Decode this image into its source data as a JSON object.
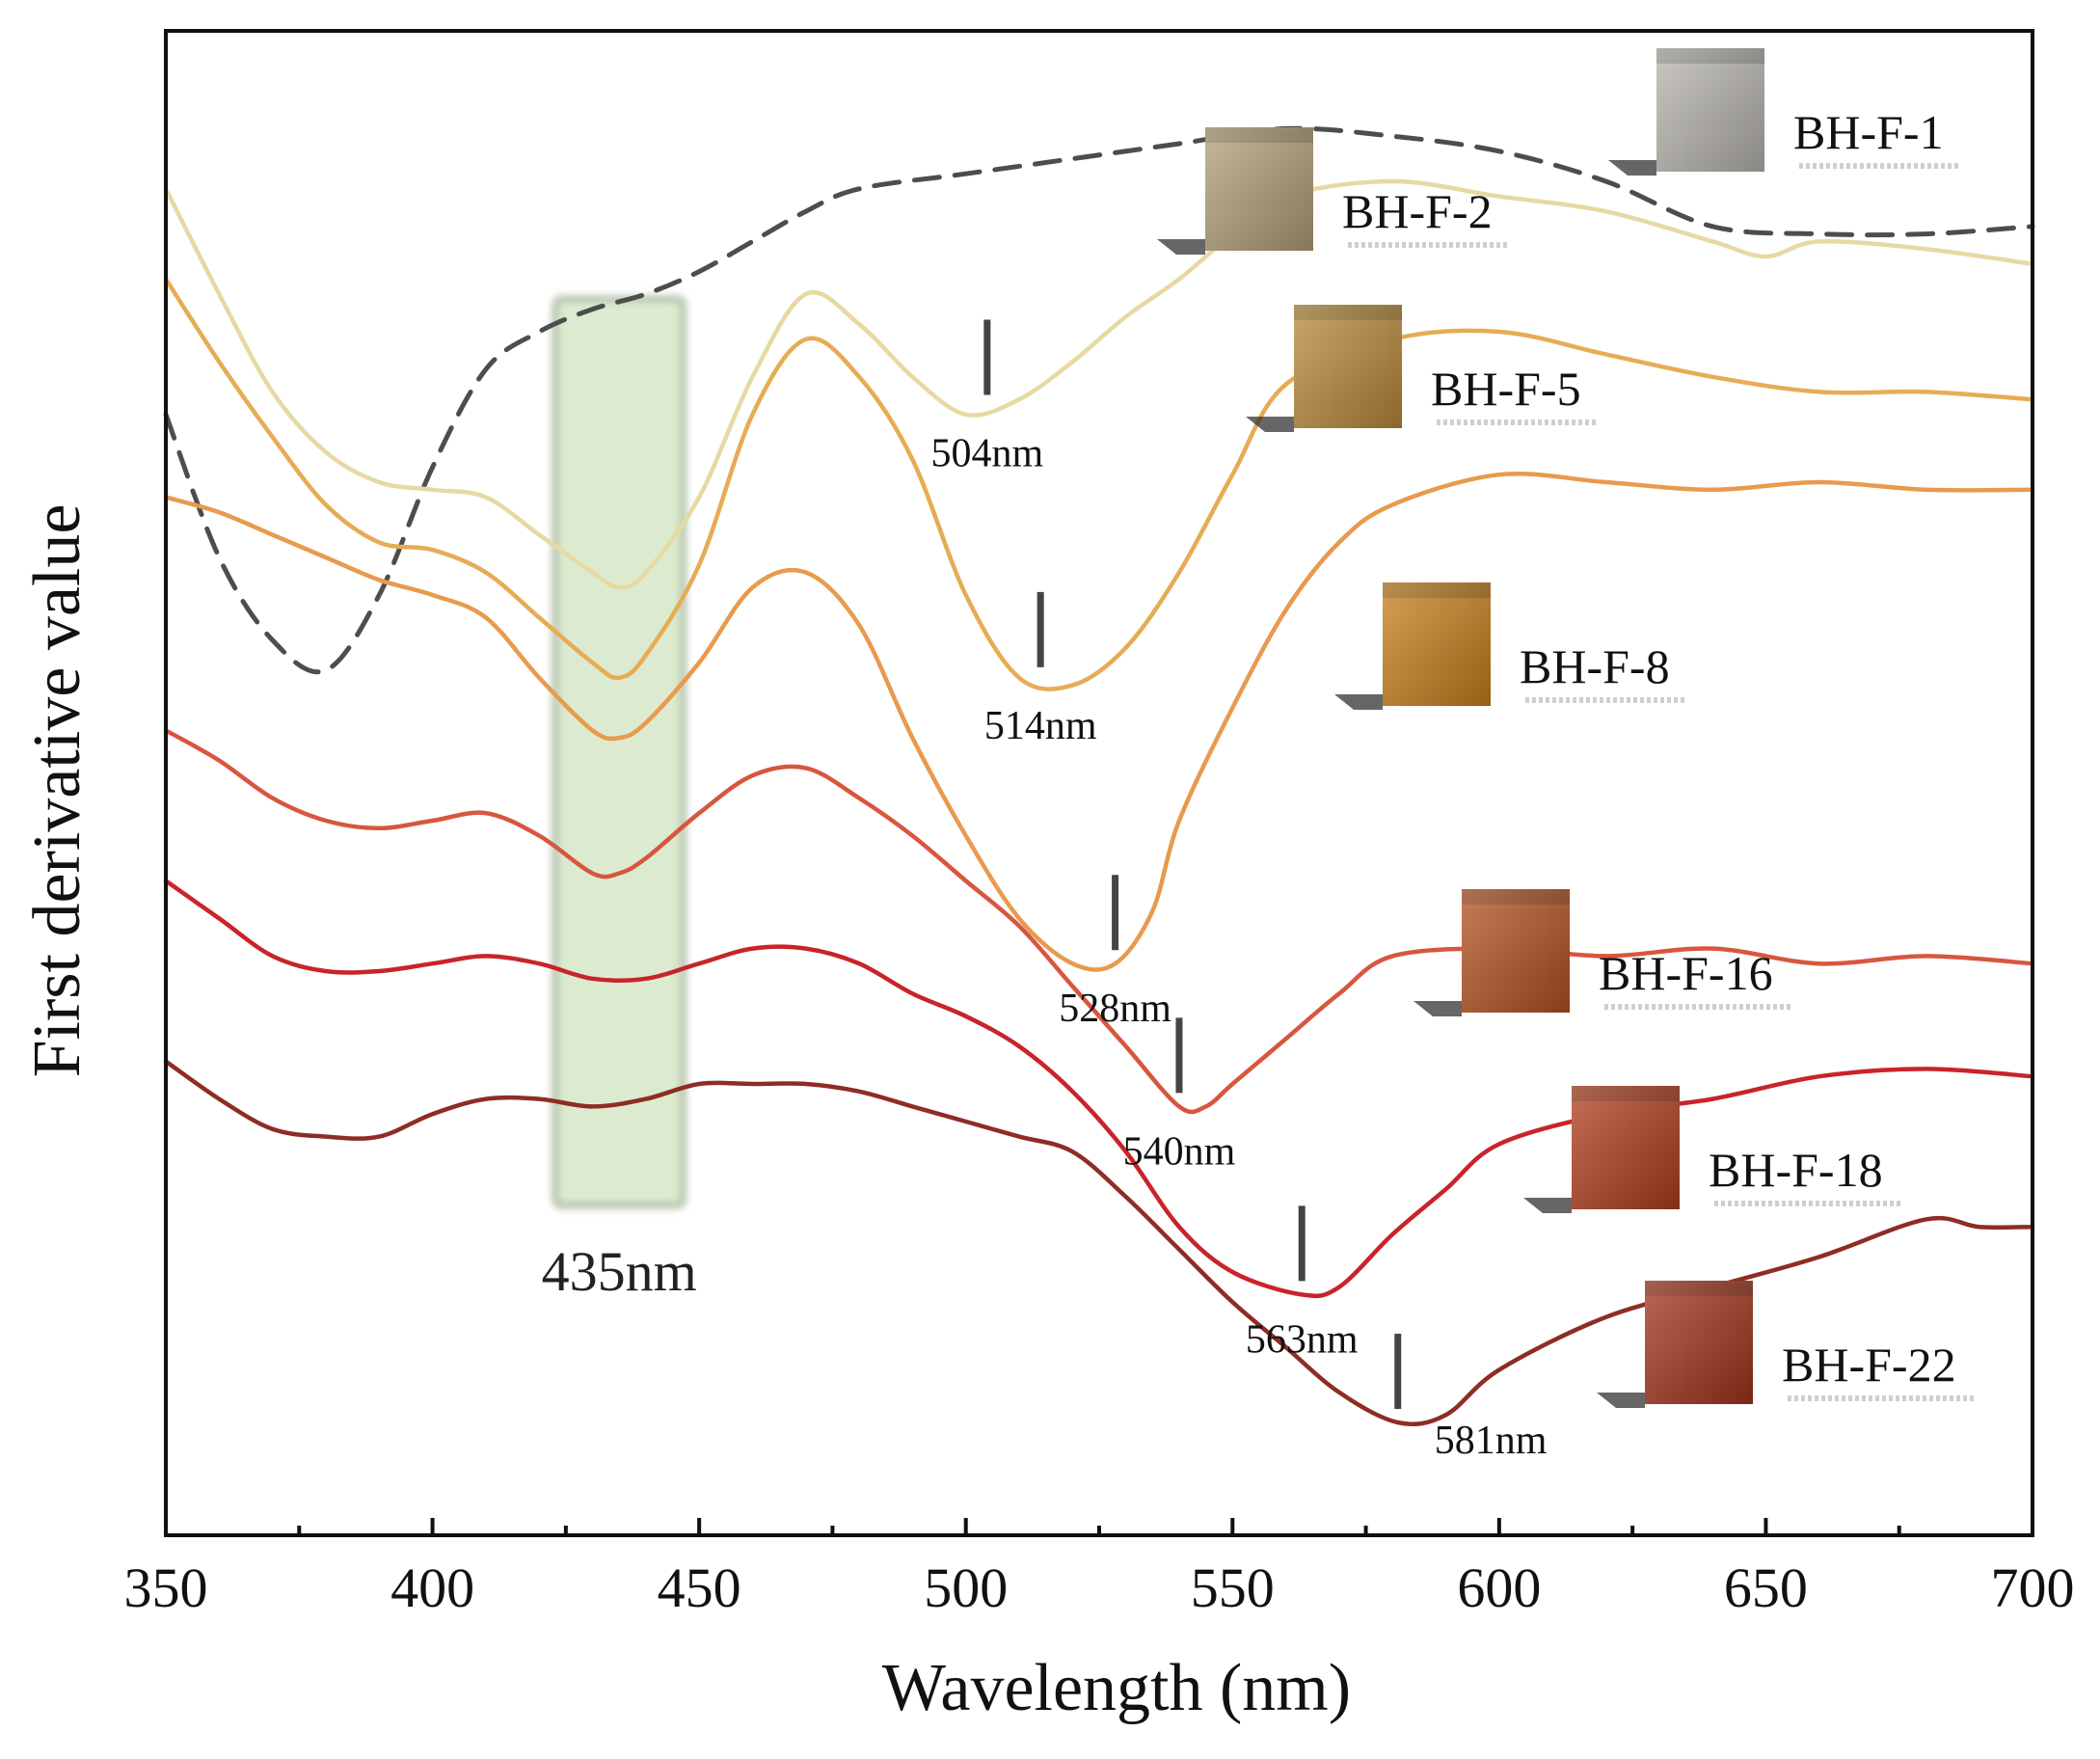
{
  "chart_data": {
    "type": "line",
    "title": "",
    "xlabel": "Wavelength (nm)",
    "ylabel": "First derivative value",
    "xlim": [
      350,
      700
    ],
    "xticks": [
      "350",
      "400",
      "450",
      "500",
      "550",
      "600",
      "650",
      "700"
    ],
    "y_tick_labels_shown": false,
    "grid": false,
    "highlight_band": {
      "x_range": [
        423,
        447
      ],
      "color": "#dcebcf",
      "label": "435nm"
    },
    "series": [
      {
        "name": "BH-F-1",
        "color": "#4d4d4d",
        "dashed": true,
        "x": [
          350,
          360,
          370,
          380,
          390,
          400,
          410,
          420,
          430,
          440,
          450,
          460,
          470,
          480,
          500,
          520,
          540,
          560,
          580,
          600,
          620,
          640,
          660,
          680,
          700
        ],
        "y": [
          14.9,
          13.0,
          11.9,
          11.5,
          12.5,
          14.2,
          15.5,
          16.0,
          16.3,
          16.5,
          16.8,
          17.2,
          17.6,
          17.9,
          18.1,
          18.3,
          18.5,
          18.7,
          18.6,
          18.4,
          18.0,
          17.4,
          17.3,
          17.3,
          17.4
        ]
      },
      {
        "name": "BH-F-2",
        "color": "#e6d9a3",
        "x": [
          350,
          360,
          370,
          380,
          390,
          400,
          410,
          420,
          430,
          435,
          440,
          450,
          460,
          470,
          480,
          490,
          500,
          510,
          520,
          530,
          540,
          550,
          560,
          580,
          600,
          620,
          640,
          650,
          660,
          680,
          700
        ],
        "y": [
          17.9,
          16.5,
          15.2,
          14.4,
          14.0,
          13.9,
          13.8,
          13.3,
          12.8,
          12.6,
          12.8,
          13.8,
          15.4,
          16.5,
          16.1,
          15.4,
          14.9,
          15.1,
          15.6,
          16.2,
          16.7,
          17.3,
          17.8,
          18.0,
          17.8,
          17.6,
          17.2,
          17.0,
          17.2,
          17.1,
          16.9
        ]
      },
      {
        "name": "BH-F-5",
        "color": "#e6ac55",
        "x": [
          350,
          360,
          370,
          380,
          390,
          400,
          410,
          420,
          430,
          435,
          440,
          450,
          460,
          470,
          480,
          490,
          500,
          510,
          520,
          530,
          540,
          550,
          560,
          580,
          600,
          620,
          640,
          660,
          680,
          700
        ],
        "y": [
          16.7,
          15.6,
          14.6,
          13.7,
          13.2,
          13.1,
          12.8,
          12.2,
          11.6,
          11.4,
          11.7,
          12.9,
          14.9,
          15.9,
          15.4,
          14.3,
          12.5,
          11.4,
          11.3,
          11.8,
          12.8,
          14.1,
          15.3,
          15.9,
          16.0,
          15.7,
          15.4,
          15.2,
          15.2,
          15.1
        ]
      },
      {
        "name": "BH-F-8",
        "color": "#e89a4e",
        "x": [
          350,
          360,
          370,
          380,
          390,
          400,
          410,
          420,
          430,
          435,
          440,
          450,
          460,
          470,
          480,
          490,
          500,
          510,
          520,
          528,
          535,
          540,
          550,
          560,
          570,
          580,
          600,
          620,
          640,
          660,
          680,
          700
        ],
        "y": [
          13.8,
          13.6,
          13.3,
          13.0,
          12.7,
          12.5,
          12.2,
          11.4,
          10.7,
          10.6,
          10.8,
          11.6,
          12.6,
          12.8,
          12.1,
          10.6,
          9.3,
          8.2,
          7.6,
          7.6,
          8.3,
          9.5,
          11.0,
          12.3,
          13.2,
          13.7,
          14.1,
          14.0,
          13.9,
          14.0,
          13.9,
          13.9
        ]
      },
      {
        "name": "BH-F-16",
        "color": "#d8563f",
        "x": [
          350,
          360,
          370,
          380,
          390,
          400,
          410,
          420,
          430,
          435,
          440,
          450,
          460,
          470,
          480,
          490,
          500,
          510,
          520,
          530,
          540,
          545,
          550,
          560,
          570,
          580,
          600,
          620,
          640,
          660,
          680,
          700
        ],
        "y": [
          10.7,
          10.3,
          9.8,
          9.5,
          9.4,
          9.5,
          9.6,
          9.3,
          8.8,
          8.8,
          9.0,
          9.6,
          10.1,
          10.2,
          9.8,
          9.3,
          8.7,
          8.1,
          7.3,
          6.5,
          5.7,
          5.7,
          6.0,
          6.6,
          7.2,
          7.7,
          7.8,
          7.7,
          7.8,
          7.6,
          7.7,
          7.6
        ]
      },
      {
        "name": "BH-F-18",
        "color": "#c8242a",
        "x": [
          350,
          360,
          370,
          380,
          390,
          400,
          410,
          420,
          430,
          440,
          450,
          460,
          470,
          480,
          490,
          500,
          510,
          520,
          530,
          540,
          550,
          563,
          570,
          580,
          590,
          600,
          620,
          640,
          660,
          680,
          700
        ],
        "y": [
          8.7,
          8.2,
          7.7,
          7.5,
          7.5,
          7.6,
          7.7,
          7.6,
          7.4,
          7.4,
          7.6,
          7.8,
          7.8,
          7.6,
          7.2,
          6.9,
          6.5,
          5.9,
          5.1,
          4.1,
          3.5,
          3.2,
          3.3,
          4.0,
          4.6,
          5.2,
          5.6,
          5.8,
          6.1,
          6.2,
          6.1
        ]
      },
      {
        "name": "BH-F-22",
        "color": "#8e2d24",
        "x": [
          350,
          360,
          370,
          380,
          390,
          400,
          410,
          420,
          430,
          440,
          450,
          460,
          470,
          480,
          490,
          500,
          510,
          520,
          530,
          540,
          550,
          560,
          570,
          581,
          590,
          600,
          620,
          640,
          660,
          680,
          690,
          700
        ],
        "y": [
          6.3,
          5.8,
          5.4,
          5.3,
          5.3,
          5.6,
          5.8,
          5.8,
          5.7,
          5.8,
          6.0,
          6.0,
          6.0,
          5.9,
          5.7,
          5.5,
          5.3,
          5.1,
          4.5,
          3.8,
          3.1,
          2.5,
          1.9,
          1.5,
          1.6,
          2.2,
          2.9,
          3.3,
          3.7,
          4.2,
          4.1,
          4.1
        ]
      }
    ],
    "minima_annotations": [
      {
        "series": "BH-F-2",
        "x": 504,
        "label": "504nm"
      },
      {
        "series": "BH-F-5",
        "x": 514,
        "label": "514nm"
      },
      {
        "series": "BH-F-8",
        "x": 528,
        "label": "528nm"
      },
      {
        "series": "BH-F-16",
        "x": 540,
        "label": "540nm"
      },
      {
        "series": "BH-F-18",
        "x": 563,
        "label": "563nm"
      },
      {
        "series": "BH-F-22",
        "x": 581,
        "label": "581nm"
      }
    ],
    "sample_labels": [
      {
        "text": "BH-F-1",
        "cube_color": "#b8b5ad"
      },
      {
        "text": "BH-F-2",
        "cube_color": "#b39f78"
      },
      {
        "text": "BH-F-5",
        "cube_color": "#b88a3a"
      },
      {
        "text": "BH-F-8",
        "cube_color": "#c77f1c"
      },
      {
        "text": "BH-F-16",
        "cube_color": "#b4511f"
      },
      {
        "text": "BH-F-18",
        "cube_color": "#b03f1c"
      },
      {
        "text": "BH-F-22",
        "cube_color": "#a1351d"
      }
    ]
  }
}
